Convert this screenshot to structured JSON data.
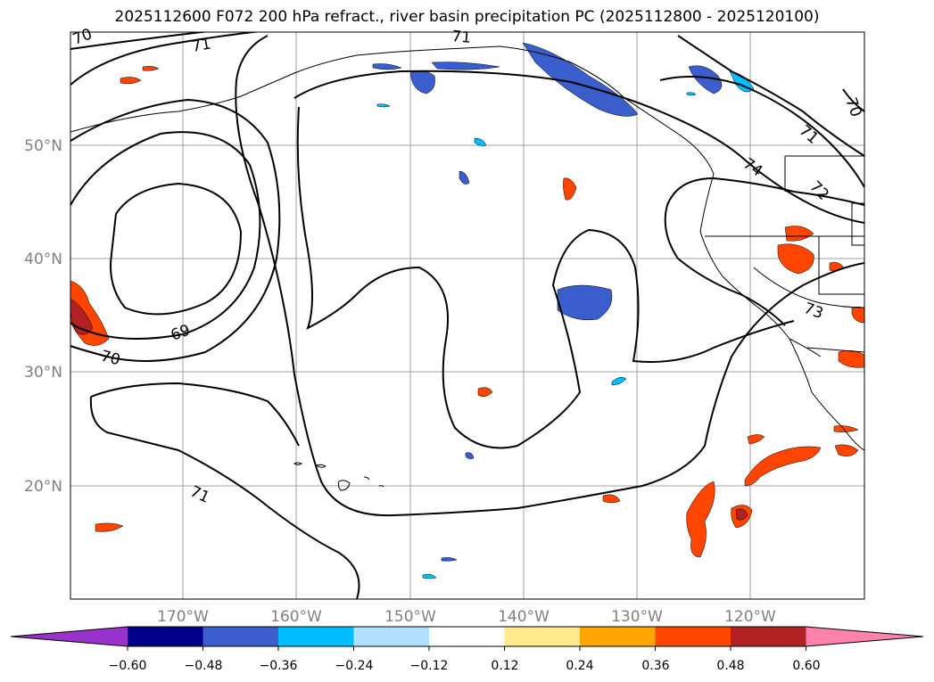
{
  "title": "2025112600 F072 200 hPa refract., river basin precipitation PC (2025112800 - 2025120100)",
  "map": {
    "lat_labels": [
      "50°N",
      "40°N",
      "30°N",
      "20°N"
    ],
    "lon_labels": [
      "170°W",
      "160°W",
      "150°W",
      "140°W",
      "130°W",
      "120°W"
    ],
    "contour_labels": [
      "70",
      "71",
      "71",
      "69",
      "70",
      "71",
      "70",
      "71",
      "72",
      "74",
      "73"
    ],
    "contour_color": "#000000",
    "gridline_color": "#a0a0a0"
  },
  "colorbar": {
    "colors": [
      "#9932cc",
      "#00008b",
      "#3a5fcd",
      "#00bfff",
      "#b0e2ff",
      "#ffffff",
      "#fee98c",
      "#ffa500",
      "#ff4500",
      "#b22222",
      "#ff82ab"
    ],
    "tick_labels": [
      "−0.60",
      "−0.48",
      "−0.36",
      "−0.24",
      "−0.12",
      "0.12",
      "0.24",
      "0.36",
      "0.48",
      "0.60"
    ]
  }
}
